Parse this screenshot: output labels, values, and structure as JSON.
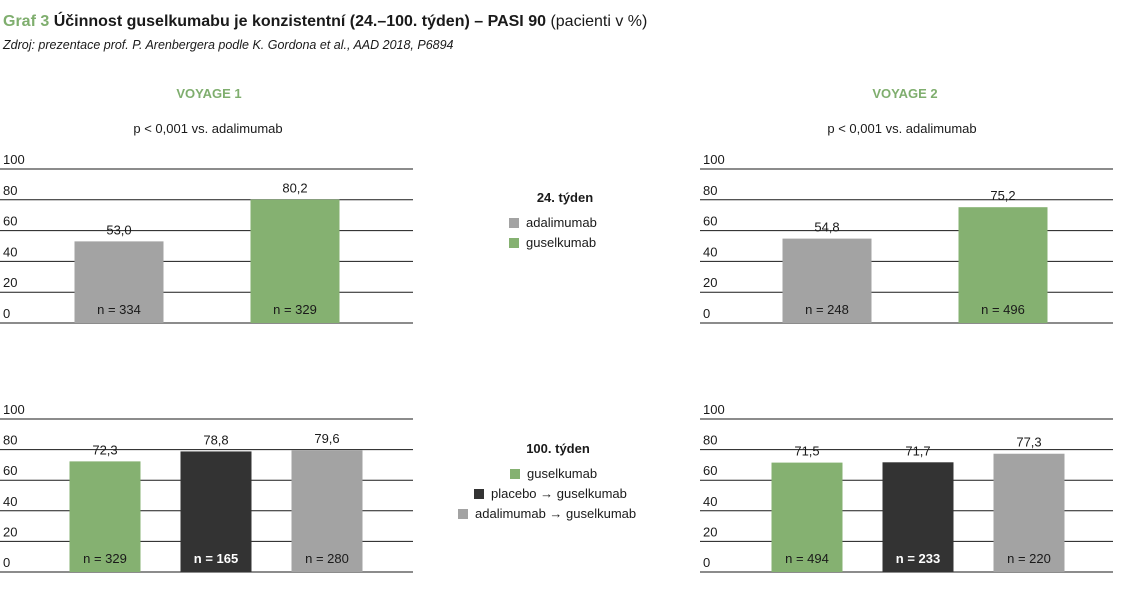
{
  "header": {
    "graf_label": "Graf 3",
    "title_bold": "Účinnost guselkumabu je konzistentní (24.–100. týden) – PASI 90",
    "title_tail": "(pacienti v %)",
    "source": "Zdroj: prezentace prof. P. Arenbergera podle K. Gordona et al., AAD 2018, P6894"
  },
  "studies": {
    "left": "VOYAGE 1",
    "right": "VOYAGE 2"
  },
  "pvalues": {
    "left": "p < 0,001 vs. adalimumab",
    "right": "p < 0,001 vs. adalimumab"
  },
  "legends": {
    "week24": {
      "title": "24. týden",
      "items": [
        {
          "label": "adalimumab",
          "color": "#a3a3a3"
        },
        {
          "label": "guselkumab",
          "color": "#85b171"
        }
      ]
    },
    "week100": {
      "title": "100. týden",
      "items": [
        {
          "label": "guselkumab",
          "color": "#85b171"
        },
        {
          "label": "placebo → guselkumab",
          "color": "#333333"
        },
        {
          "label": "adalimumab → guselkumab",
          "color": "#a3a3a3"
        }
      ]
    }
  },
  "chart_data": [
    {
      "type": "bar",
      "study": "VOYAGE 1",
      "week": "24. týden",
      "categories": [
        "adalimumab",
        "guselkumab"
      ],
      "values": [
        53.0,
        80.2
      ],
      "value_labels": [
        "53,0",
        "80,2"
      ],
      "n_labels": [
        "n = 334",
        "n = 329"
      ],
      "colors": [
        "#a3a3a3",
        "#85b171"
      ],
      "yticks": [
        "0",
        "20",
        "40",
        "60",
        "80",
        "100"
      ],
      "ylim": [
        0,
        100
      ],
      "grid": true
    },
    {
      "type": "bar",
      "study": "VOYAGE 2",
      "week": "24. týden",
      "categories": [
        "adalimumab",
        "guselkumab"
      ],
      "values": [
        54.8,
        75.2
      ],
      "value_labels": [
        "54,8",
        "75,2"
      ],
      "n_labels": [
        "n = 248",
        "n = 496"
      ],
      "colors": [
        "#a3a3a3",
        "#85b171"
      ],
      "yticks": [
        "0",
        "20",
        "40",
        "60",
        "80",
        "100"
      ],
      "ylim": [
        0,
        100
      ],
      "grid": true
    },
    {
      "type": "bar",
      "study": "VOYAGE 1",
      "week": "100. týden",
      "categories": [
        "guselkumab",
        "placebo → guselkumab",
        "adalimumab → guselkumab"
      ],
      "values": [
        72.3,
        78.8,
        79.6
      ],
      "value_labels": [
        "72,3",
        "78,8",
        "79,6"
      ],
      "n_labels": [
        "n = 329",
        "n = 165",
        "n = 280"
      ],
      "colors": [
        "#85b171",
        "#333333",
        "#a3a3a3"
      ],
      "yticks": [
        "0",
        "20",
        "40",
        "60",
        "80",
        "100"
      ],
      "ylim": [
        0,
        100
      ],
      "grid": true
    },
    {
      "type": "bar",
      "study": "VOYAGE 2",
      "week": "100. týden",
      "categories": [
        "guselkumab",
        "placebo → guselkumab",
        "adalimumab → guselkumab"
      ],
      "values": [
        71.5,
        71.7,
        77.3
      ],
      "value_labels": [
        "71,5",
        "71,7",
        "77,3"
      ],
      "n_labels": [
        "n = 494",
        "n = 233",
        "n = 220"
      ],
      "colors": [
        "#85b171",
        "#333333",
        "#a3a3a3"
      ],
      "yticks": [
        "0",
        "20",
        "40",
        "60",
        "80",
        "100"
      ],
      "ylim": [
        0,
        100
      ],
      "grid": true
    }
  ]
}
